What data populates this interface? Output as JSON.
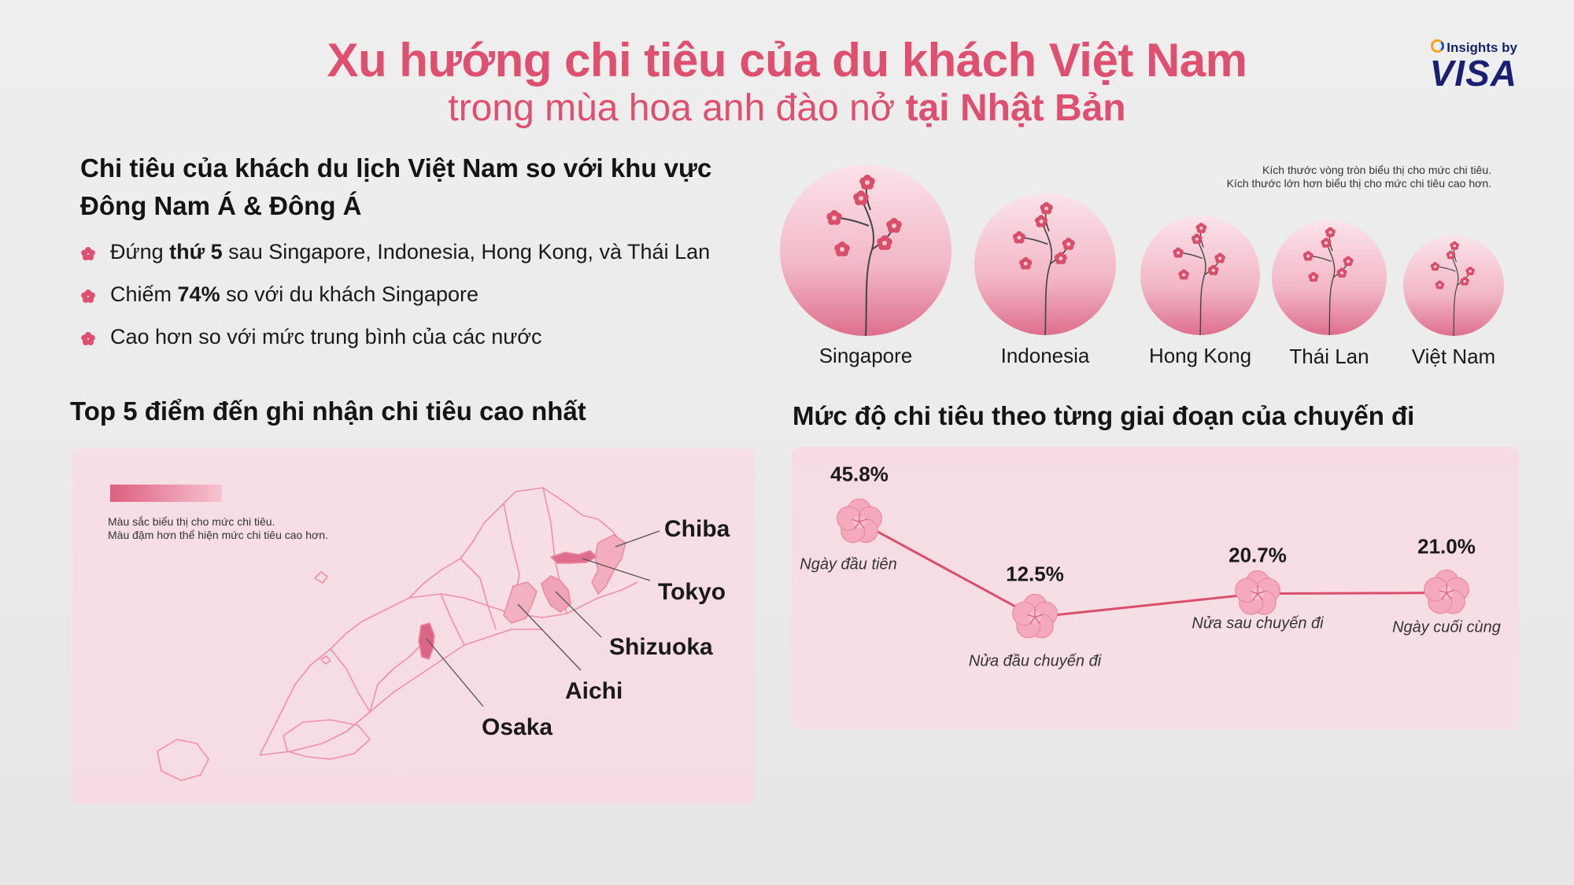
{
  "header": {
    "title": "Xu hướng chi tiêu của du khách Việt Nam",
    "subtitle_normal": "trong mùa hoa anh đào nở ",
    "subtitle_bold": "tại Nhật Bản"
  },
  "brand": {
    "insights_by": "Insights by",
    "logo": "VISA",
    "color": "#1a1f71"
  },
  "section1": {
    "heading_line1": "Chi tiêu của khách du lịch Việt Nam so với khu vực",
    "heading_line2": "Đông Nam Á & Đông Á",
    "bullets": [
      {
        "pre": "Đứng ",
        "bold": "thứ 5",
        "post": " sau Singapore, Indonesia, Hong Kong, và Thái Lan"
      },
      {
        "pre": "Chiếm ",
        "bold": "74%",
        "post": " so với du khách Singapore"
      },
      {
        "pre": "Cao hơn so với mức trung bình của các nước",
        "bold": "",
        "post": ""
      }
    ]
  },
  "bubbles": {
    "note_line1": "Kích thước vòng tròn biểu thị cho mức chi tiêu.",
    "note_line2": "Kích thước lớn hơn biểu thị cho mức chi tiêu cao hơn.",
    "countries": [
      "Singapore",
      "Indonesia",
      "Hong Kong",
      "Thái Lan",
      "Việt Nam"
    ],
    "rank": [
      1,
      2,
      3,
      4,
      5
    ]
  },
  "section2": {
    "heading": "Top 5 điểm đến ghi nhận chi tiêu cao nhất",
    "legend_line1": "Màu sắc biểu thị cho mức chi tiêu.",
    "legend_line2": "Màu đậm hơn thể hiện mức chi tiêu cao hơn.",
    "prefectures": [
      "Chiba",
      "Tokyo",
      "Shizuoka",
      "Aichi",
      "Osaka"
    ]
  },
  "section3": {
    "heading": "Mức độ chi tiêu theo từng giai đoạn của chuyến đi"
  },
  "chart_data": {
    "type": "line",
    "categories": [
      "Ngày đầu tiên",
      "Nửa đầu chuyến đi",
      "Nửa sau chuyến đi",
      "Ngày cuối cùng"
    ],
    "values": [
      45.8,
      12.5,
      20.7,
      21.0
    ],
    "value_labels": [
      "45.8%",
      "12.5%",
      "20.7%",
      "21.0%"
    ],
    "unit": "%",
    "ylim": [
      0,
      50
    ],
    "grid": false,
    "line_color": "#d94e6b"
  },
  "colors": {
    "accent": "#df4f70",
    "panel": "#f6dbe3",
    "map_stroke": "#f08fa9",
    "map_dark": "#e07090"
  }
}
